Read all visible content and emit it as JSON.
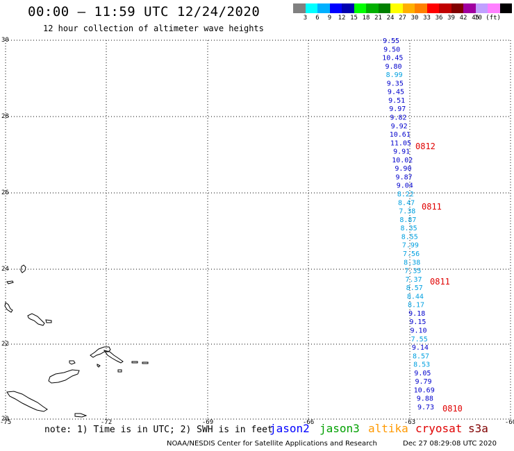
{
  "header": {
    "title": "00:00 – 11:59 UTC 12/24/2020",
    "subtitle": "12 hour collection of altimeter wave heights"
  },
  "colorbar": {
    "colors": [
      "#808080",
      "#00ffff",
      "#00b0ff",
      "#0000ff",
      "#0000b0",
      "#00ff00",
      "#00b000",
      "#008000",
      "#ffff00",
      "#ffb000",
      "#ff8000",
      "#ff0000",
      "#c00000",
      "#800000",
      "#a000a0",
      "#c0a0ff",
      "#ff80ff",
      "#000000"
    ],
    "labels": [
      "3",
      "6",
      "9",
      "12",
      "15",
      "18",
      "21",
      "24",
      "27",
      "30",
      "33",
      "36",
      "39",
      "42",
      "45",
      "70 (ft)"
    ]
  },
  "axes": {
    "lat_labels": [
      "30",
      "28",
      "26",
      "24",
      "22",
      "20"
    ],
    "lon_labels": [
      "-75",
      "-72",
      "-69",
      "-66",
      "-63",
      "-60"
    ]
  },
  "swh_readings": [
    {
      "v": "9.55",
      "c": "#0000cc"
    },
    {
      "v": "9.50",
      "c": "#0000cc"
    },
    {
      "v": "10.45",
      "c": "#0000cc"
    },
    {
      "v": "9.80",
      "c": "#0000cc"
    },
    {
      "v": "8.99",
      "c": "#00a0e0"
    },
    {
      "v": "9.35",
      "c": "#0000cc"
    },
    {
      "v": "9.45",
      "c": "#0000cc"
    },
    {
      "v": "9.51",
      "c": "#0000cc"
    },
    {
      "v": "9.97",
      "c": "#0000cc"
    },
    {
      "v": "9.82",
      "c": "#0000cc"
    },
    {
      "v": "9.92",
      "c": "#0000cc"
    },
    {
      "v": "10.61",
      "c": "#0000cc"
    },
    {
      "v": "11.05",
      "c": "#0000cc"
    },
    {
      "v": "9.91",
      "c": "#0000cc"
    },
    {
      "v": "10.02",
      "c": "#0000cc"
    },
    {
      "v": "9.90",
      "c": "#0000cc"
    },
    {
      "v": "9.87",
      "c": "#0000cc"
    },
    {
      "v": "9.04",
      "c": "#0000cc"
    },
    {
      "v": "8.22",
      "c": "#00a0e0"
    },
    {
      "v": "8.47",
      "c": "#00a0e0"
    },
    {
      "v": "7.38",
      "c": "#00a0e0"
    },
    {
      "v": "8.87",
      "c": "#00a0e0"
    },
    {
      "v": "8.35",
      "c": "#00a0e0"
    },
    {
      "v": "8.55",
      "c": "#00a0e0"
    },
    {
      "v": "7.99",
      "c": "#00a0e0"
    },
    {
      "v": "7.56",
      "c": "#00a0e0"
    },
    {
      "v": "8.38",
      "c": "#00a0e0"
    },
    {
      "v": "7.35",
      "c": "#00a0e0"
    },
    {
      "v": "7.37",
      "c": "#00a0e0"
    },
    {
      "v": "8.57",
      "c": "#00a0e0"
    },
    {
      "v": "8.44",
      "c": "#00a0e0"
    },
    {
      "v": "8.17",
      "c": "#00a0e0"
    },
    {
      "v": "9.18",
      "c": "#0000cc"
    },
    {
      "v": "9.15",
      "c": "#0000cc"
    },
    {
      "v": "9.10",
      "c": "#0000cc"
    },
    {
      "v": "7.55",
      "c": "#00a0e0"
    },
    {
      "v": "9.14",
      "c": "#0000cc"
    },
    {
      "v": "8.57",
      "c": "#00a0e0"
    },
    {
      "v": "8.53",
      "c": "#00a0e0"
    },
    {
      "v": "9.05",
      "c": "#0000cc"
    },
    {
      "v": "9.79",
      "c": "#0000cc"
    },
    {
      "v": "10.69",
      "c": "#0000cc"
    },
    {
      "v": "9.88",
      "c": "#0000cc"
    },
    {
      "v": "9.73",
      "c": "#0000cc"
    }
  ],
  "time_stamps": [
    "0812",
    "0811",
    "0811",
    "0810"
  ],
  "footer": {
    "note": "note: 1) Time is in UTC; 2) SWH is in feet",
    "legend": [
      {
        "label": "jason2",
        "color": "#0000ff"
      },
      {
        "label": "jason3",
        "color": "#00a000"
      },
      {
        "label": "altika",
        "color": "#ff9900"
      },
      {
        "label": "cryosat",
        "color": "#e00000"
      },
      {
        "label": "s3a",
        "color": "#800000"
      }
    ],
    "credit": "NOAA/NESDIS Center for Satellite Applications and Research",
    "generated": "Dec 27 08:29:08 UTC 2020"
  }
}
